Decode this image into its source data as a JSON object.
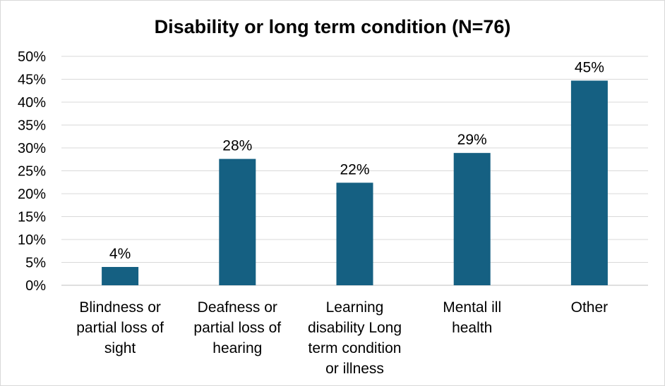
{
  "chart_data": {
    "type": "bar",
    "title": "Disability or long term condition (N=76)",
    "categories": [
      [
        "Blindness or",
        "partial loss of",
        "sight"
      ],
      [
        "Deafness or",
        "partial loss of",
        "hearing"
      ],
      [
        "Learning",
        "disability Long",
        "term condition",
        "or illness"
      ],
      [
        "Mental ill",
        "health"
      ],
      [
        "Other"
      ]
    ],
    "values": [
      4,
      27.6,
      22.4,
      28.9,
      44.7
    ],
    "data_labels": [
      "4%",
      "28%",
      "22%",
      "29%",
      "45%"
    ],
    "ylim": [
      0,
      50
    ],
    "yticks": [
      0,
      5,
      10,
      15,
      20,
      25,
      30,
      35,
      40,
      45,
      50
    ],
    "ytick_labels": [
      "0%",
      "5%",
      "10%",
      "15%",
      "20%",
      "25%",
      "30%",
      "35%",
      "40%",
      "45%",
      "50%"
    ],
    "xlabel": "",
    "ylabel": "",
    "grid": true,
    "legend": "none",
    "bar_color": "#156082"
  }
}
